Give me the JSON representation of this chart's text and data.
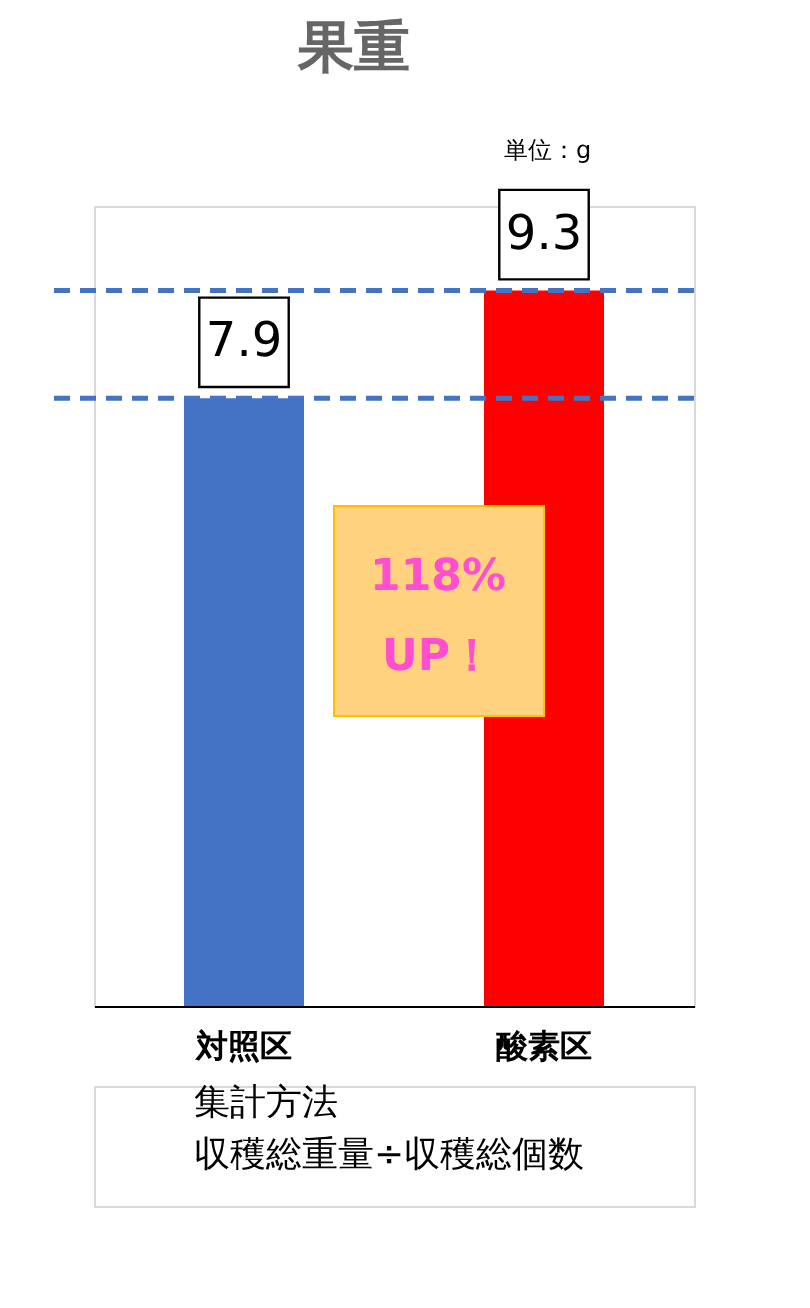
{
  "chart_data": {
    "type": "bar",
    "title": "果重",
    "categories": [
      "対照区",
      "酸素区"
    ],
    "values": [
      7.9,
      9.3
    ],
    "colors": [
      "#4472c4",
      "#ff0000"
    ],
    "ylim": [
      0,
      10.4
    ],
    "data_labels": true,
    "ref_lines": [
      {
        "axis": "y",
        "value": 7.9,
        "label": null,
        "color": "#4472c4",
        "line_style": "dashed"
      },
      {
        "axis": "y",
        "value": 9.3,
        "label": null,
        "color": "#4472c4",
        "line_style": "dashed"
      }
    ],
    "annotations": [
      "単位：g",
      "118%\nUP！",
      "集計方法",
      "収穫総重量÷収穫総個数"
    ],
    "grid": false
  }
}
